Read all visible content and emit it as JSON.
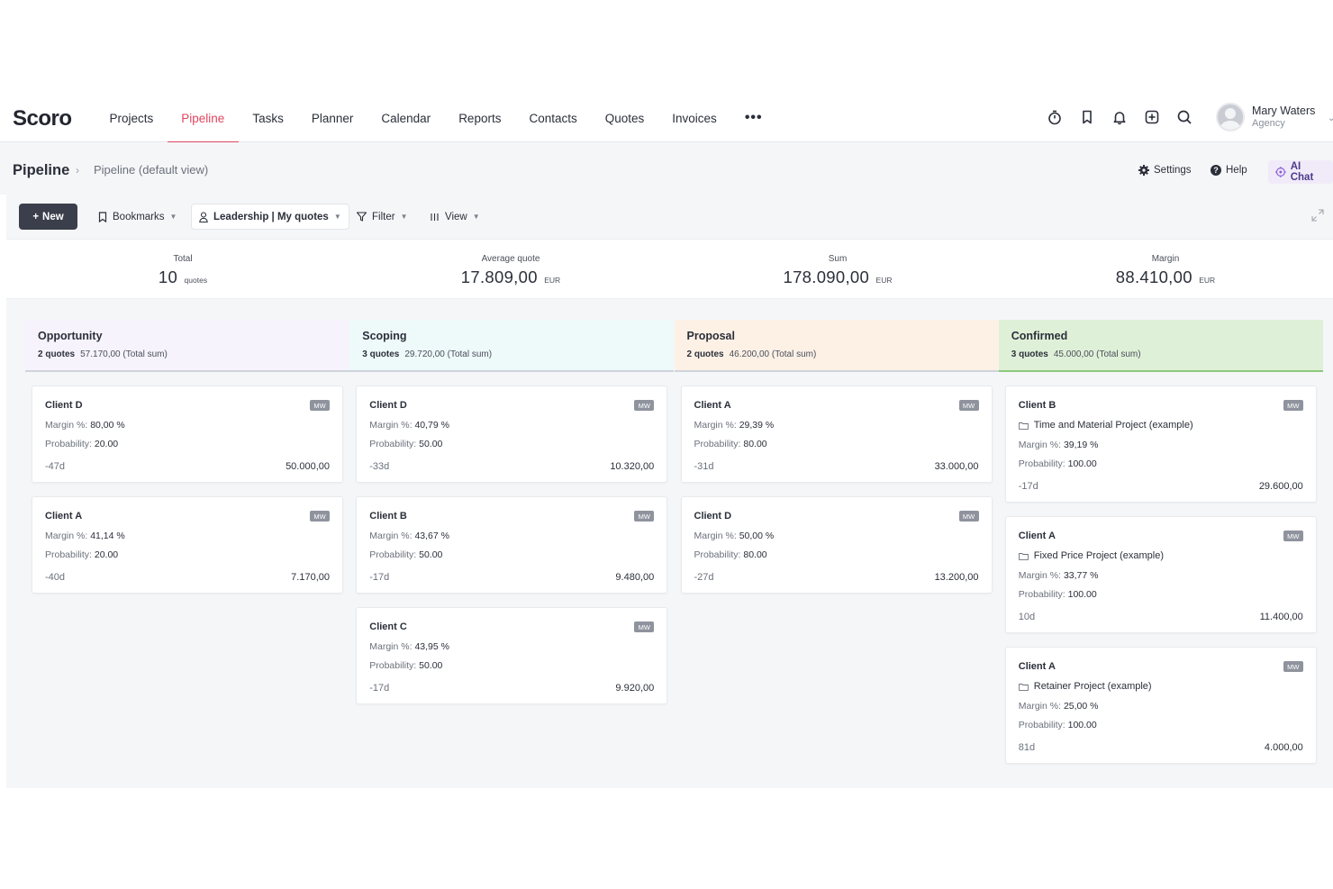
{
  "app": {
    "logo": "Scoro"
  },
  "nav": {
    "items": [
      "Projects",
      "Pipeline",
      "Tasks",
      "Planner",
      "Calendar",
      "Reports",
      "Contacts",
      "Quotes",
      "Invoices"
    ],
    "active_index": 1,
    "more": "•••"
  },
  "user": {
    "name": "Mary Waters",
    "role": "Agency"
  },
  "page": {
    "title": "Pipeline",
    "subtitle": "Pipeline (default view)",
    "settings": "Settings",
    "help": "Help",
    "ai_chat": "AI Chat"
  },
  "toolbar": {
    "new": "New",
    "bookmarks": "Bookmarks",
    "leadership": "Leadership | My quotes",
    "filter": "Filter",
    "view": "View"
  },
  "stats": [
    {
      "label": "Total",
      "value": "10",
      "unit": "quotes"
    },
    {
      "label": "Average quote",
      "value": "17.809,00",
      "unit": "EUR"
    },
    {
      "label": "Sum",
      "value": "178.090,00",
      "unit": "EUR"
    },
    {
      "label": "Margin",
      "value": "88.410,00",
      "unit": "EUR"
    }
  ],
  "columns": [
    {
      "title": "Opportunity",
      "count": "2 quotes",
      "sum": "57.170,00 (Total sum)",
      "color": "#f6f3fc",
      "cards": [
        {
          "client": "Client D",
          "owner": "MW",
          "project": "",
          "margin_label": "Margin %:",
          "margin": "80,00 %",
          "prob_label": "Probability:",
          "probability": "20.00",
          "days": "-47d",
          "amount": "50.000,00"
        },
        {
          "client": "Client A",
          "owner": "MW",
          "project": "",
          "margin_label": "Margin %:",
          "margin": "41,14 %",
          "prob_label": "Probability:",
          "probability": "20.00",
          "days": "-40d",
          "amount": "7.170,00"
        }
      ]
    },
    {
      "title": "Scoping",
      "count": "3 quotes",
      "sum": "29.720,00 (Total sum)",
      "color": "#eef9fa",
      "cards": [
        {
          "client": "Client D",
          "owner": "MW",
          "project": "",
          "margin_label": "Margin %:",
          "margin": "40,79 %",
          "prob_label": "Probability:",
          "probability": "50.00",
          "days": "-33d",
          "amount": "10.320,00"
        },
        {
          "client": "Client B",
          "owner": "MW",
          "project": "",
          "margin_label": "Margin %:",
          "margin": "43,67 %",
          "prob_label": "Probability:",
          "probability": "50.00",
          "days": "-17d",
          "amount": "9.480,00"
        },
        {
          "client": "Client C",
          "owner": "MW",
          "project": "",
          "margin_label": "Margin %:",
          "margin": "43,95 %",
          "prob_label": "Probability:",
          "probability": "50.00",
          "days": "-17d",
          "amount": "9.920,00"
        }
      ]
    },
    {
      "title": "Proposal",
      "count": "2 quotes",
      "sum": "46.200,00 (Total sum)",
      "color": "#fdf1e6",
      "cards": [
        {
          "client": "Client A",
          "owner": "MW",
          "project": "",
          "margin_label": "Margin %:",
          "margin": "29,39 %",
          "prob_label": "Probability:",
          "probability": "80.00",
          "days": "-31d",
          "amount": "33.000,00"
        },
        {
          "client": "Client D",
          "owner": "MW",
          "project": "",
          "margin_label": "Margin %:",
          "margin": "50,00 %",
          "prob_label": "Probability:",
          "probability": "80.00",
          "days": "-27d",
          "amount": "13.200,00"
        }
      ]
    },
    {
      "title": "Confirmed",
      "count": "3 quotes",
      "sum": "45.000,00 (Total sum)",
      "color": "#dff0d8",
      "cards": [
        {
          "client": "Client B",
          "owner": "MW",
          "project": "Time and Material Project (example)",
          "margin_label": "Margin %:",
          "margin": "39,19 %",
          "prob_label": "Probability:",
          "probability": "100.00",
          "days": "-17d",
          "amount": "29.600,00"
        },
        {
          "client": "Client A",
          "owner": "MW",
          "project": "Fixed Price Project (example)",
          "margin_label": "Margin %:",
          "margin": "33,77 %",
          "prob_label": "Probability:",
          "probability": "100.00",
          "days": "10d",
          "amount": "11.400,00"
        },
        {
          "client": "Client A",
          "owner": "MW",
          "project": "Retainer Project (example)",
          "margin_label": "Margin %:",
          "margin": "25,00 %",
          "prob_label": "Probability:",
          "probability": "100.00",
          "days": "81d",
          "amount": "4.000,00"
        }
      ]
    }
  ],
  "colors": {
    "accent": "#e0475f",
    "confirmed_border": "#8cc97a"
  },
  "icons": [
    "timer-icon",
    "bookmark-icon",
    "bell-icon",
    "add-icon",
    "search-icon"
  ]
}
